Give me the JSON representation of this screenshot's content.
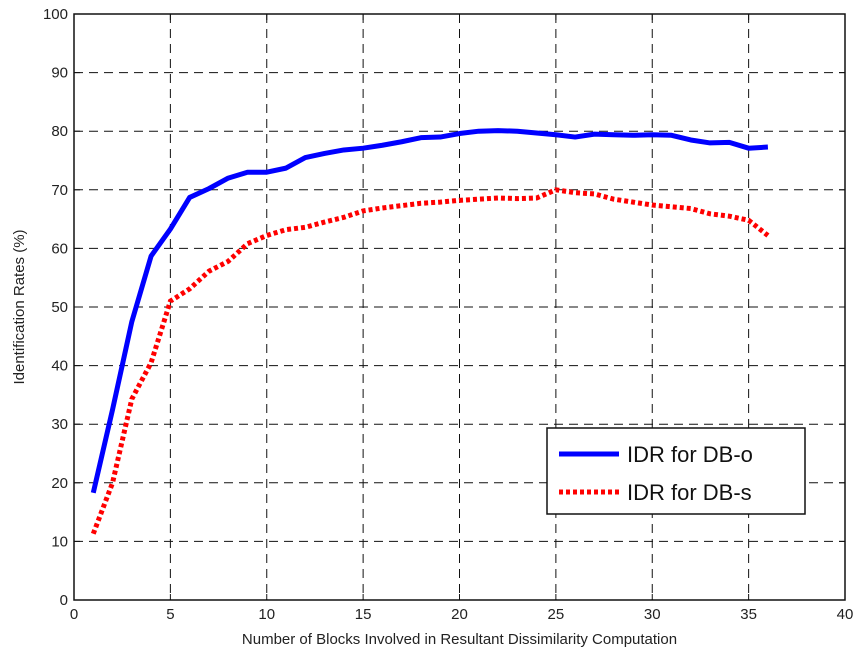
{
  "chart_data": {
    "type": "line",
    "title": "",
    "xlabel": "Number of Blocks Involved in Resultant Dissimilarity Computation",
    "ylabel": "Identification Rates (%)",
    "xlim": [
      0,
      40
    ],
    "ylim": [
      0,
      100
    ],
    "xticks": [
      0,
      5,
      10,
      15,
      20,
      25,
      30,
      35,
      40
    ],
    "yticks": [
      0,
      10,
      20,
      30,
      40,
      50,
      60,
      70,
      80,
      90,
      100
    ],
    "grid": true,
    "legend_position": "bottom-right",
    "x": [
      1,
      2,
      3,
      4,
      5,
      6,
      7,
      8,
      9,
      10,
      11,
      12,
      13,
      14,
      15,
      16,
      17,
      18,
      19,
      20,
      21,
      22,
      23,
      24,
      25,
      26,
      27,
      28,
      29,
      30,
      31,
      32,
      33,
      34,
      35,
      36
    ],
    "series": [
      {
        "name": "IDR for DB-o",
        "color": "#0000ff",
        "style": "solid",
        "values": [
          18.3,
          32.5,
          47.5,
          58.7,
          63.3,
          68.7,
          70.2,
          72.0,
          73.0,
          73.0,
          73.7,
          75.5,
          76.2,
          76.8,
          77.1,
          77.6,
          78.2,
          78.9,
          79.0,
          79.6,
          80.0,
          80.1,
          80.0,
          79.7,
          79.4,
          79.0,
          79.5,
          79.4,
          79.3,
          79.4,
          79.3,
          78.5,
          78.0,
          78.1,
          77.1,
          77.3
        ]
      },
      {
        "name": "IDR for DB-s",
        "color": "#ff0000",
        "style": "dotted",
        "values": [
          11.3,
          20.0,
          34.3,
          40.5,
          51.0,
          53.1,
          56.1,
          57.8,
          60.8,
          62.2,
          63.2,
          63.6,
          64.5,
          65.3,
          66.4,
          66.9,
          67.3,
          67.7,
          67.9,
          68.2,
          68.4,
          68.6,
          68.5,
          68.6,
          70.0,
          69.5,
          69.3,
          68.4,
          67.9,
          67.4,
          67.1,
          66.8,
          65.9,
          65.5,
          64.8,
          62.2
        ]
      }
    ]
  }
}
